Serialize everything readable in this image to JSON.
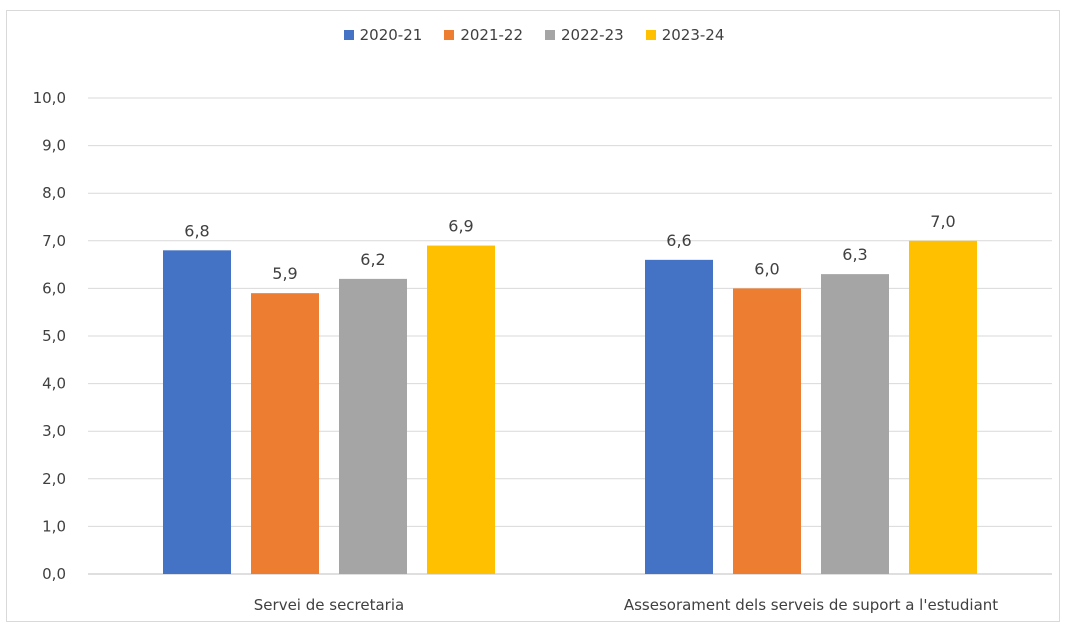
{
  "chart_data": {
    "type": "bar",
    "title": "",
    "xlabel": "",
    "ylabel": "",
    "ylim": [
      0,
      10
    ],
    "y_ticks": [
      "0,0",
      "1,0",
      "2,0",
      "3,0",
      "4,0",
      "5,0",
      "6,0",
      "7,0",
      "8,0",
      "9,0",
      "10,0"
    ],
    "grid": true,
    "legend_position": "top",
    "categories": [
      "Servei de secretaria",
      "Assesorament dels serveis de suport a l'estudiant"
    ],
    "series": [
      {
        "name": "2020-21",
        "color": "#4472C4",
        "values": [
          6.8,
          6.6
        ],
        "labels": [
          "6,8",
          "6,6"
        ]
      },
      {
        "name": "2021-22",
        "color": "#ED7D31",
        "values": [
          5.9,
          6.0
        ],
        "labels": [
          "5,9",
          "6,0"
        ]
      },
      {
        "name": "2022-23",
        "color": "#A5A5A5",
        "values": [
          6.2,
          6.3
        ],
        "labels": [
          "6,2",
          "6,3"
        ]
      },
      {
        "name": "2023-24",
        "color": "#FFC000",
        "values": [
          6.9,
          7.0
        ],
        "labels": [
          "6,9",
          "7,0"
        ]
      }
    ]
  }
}
